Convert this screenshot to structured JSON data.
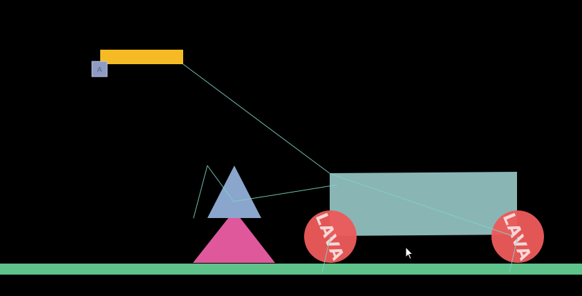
{
  "scene": {
    "background_color": "#000000",
    "ground_color": "#5ec28a",
    "platform_color": "#f6bb24",
    "marker_label": "A",
    "marker_color": "#8e9bc4",
    "marker_text_color": "#5a6180",
    "cart_body_color": "#8fbdbb",
    "wheel_color": "#ec5a5a",
    "wheel_label_color": "#f7d8d8",
    "wheels": [
      {
        "label": "LAVA"
      },
      {
        "label": "LAVA"
      }
    ],
    "triangle_top_color": "#8aa6cc",
    "triangle_bottom_color": "#e0589c",
    "rope_color": "#7fd4c4",
    "cursor_icon": "arrow-cursor-icon"
  }
}
